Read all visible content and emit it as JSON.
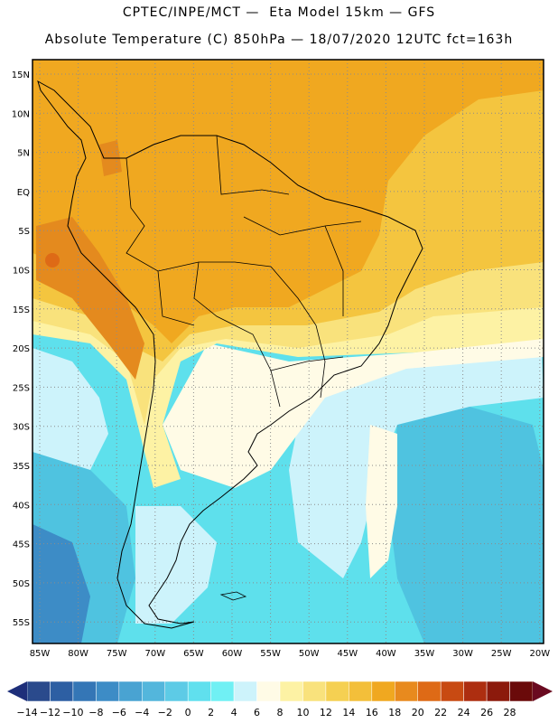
{
  "header": {
    "line1": "CPTEC/INPE/MCT —  Eta Model 15km — GFS",
    "line2": "Absolute Temperature (C) 850hPa — 18/07/2020 12UTC fct=163h"
  },
  "map": {
    "lat_labels": [
      "15N",
      "10N",
      "5N",
      "EQ",
      "5S",
      "10S",
      "15S",
      "20S",
      "25S",
      "30S",
      "35S",
      "40S",
      "45S",
      "50S",
      "55S"
    ],
    "lon_labels": [
      "85W",
      "80W",
      "75W",
      "70W",
      "65W",
      "60W",
      "55W",
      "50W",
      "45W",
      "40W",
      "35W",
      "30W",
      "25W",
      "20W"
    ],
    "colors": {
      "ocean_cold": "#4fc3e0",
      "ocean_mid": "#5ee0ec",
      "cyan_light": "#cdf3fb",
      "cream": "#fffbe6",
      "pale_yellow": "#fdf2a4",
      "yellow": "#f9e27c",
      "gold": "#f4c53f",
      "orange": "#f0a820",
      "dark_orange": "#e48a1e",
      "land_border": "#000000",
      "grid": "#8c8c8c"
    }
  },
  "colorbar": {
    "labels": [
      "-14",
      "-12",
      "-10",
      "-8",
      "-6",
      "-4",
      "-2",
      "0",
      "2",
      "4",
      "6",
      "8",
      "10",
      "12",
      "14",
      "16",
      "18",
      "20",
      "22",
      "24",
      "26",
      "28"
    ],
    "colors": [
      "#2a4a8c",
      "#2d5fa3",
      "#3476b6",
      "#3d8cc6",
      "#49a3d2",
      "#53b6dc",
      "#5dcbe6",
      "#60e0ee",
      "#70f0f4",
      "#cdf3fb",
      "#fffbe6",
      "#fdf2a4",
      "#f9e27c",
      "#f5d052",
      "#f3bf3a",
      "#f0a820",
      "#e88a1e",
      "#de6a16",
      "#c84a12",
      "#ad2e10",
      "#8c1a0c",
      "#6a0a0a"
    ]
  }
}
